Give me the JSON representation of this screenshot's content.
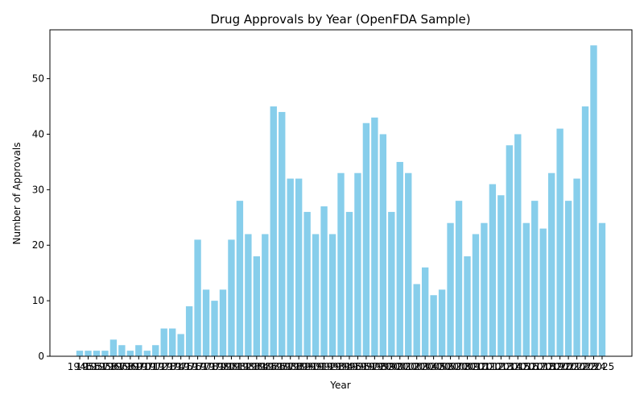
{
  "chart_data": {
    "type": "bar",
    "title": "Drug Approvals by Year (OpenFDA Sample)",
    "x_label": "Year",
    "y_label": "Number of Approvals",
    "categories": [
      "1946",
      "1955",
      "1957",
      "1958",
      "1967",
      "1968",
      "1969",
      "1970",
      "1971",
      "1972",
      "1973",
      "1974",
      "1975",
      "1976",
      "1977",
      "1978",
      "1979",
      "1980",
      "1981",
      "1982",
      "1983",
      "1984",
      "1985",
      "1986",
      "1987",
      "1988",
      "1989",
      "1990",
      "1991",
      "1992",
      "1993",
      "1994",
      "1995",
      "1996",
      "1997",
      "1998",
      "1999",
      "2000",
      "2001",
      "2002",
      "2003",
      "2004",
      "2005",
      "2006",
      "2007",
      "2008",
      "2009",
      "2010",
      "2011",
      "2012",
      "2013",
      "2014",
      "2015",
      "2016",
      "2017",
      "2018",
      "2019",
      "2020",
      "2021",
      "2022",
      "2023",
      "2024",
      "2025"
    ],
    "values": [
      1,
      1,
      1,
      1,
      3,
      2,
      1,
      2,
      1,
      2,
      5,
      5,
      4,
      9,
      21,
      12,
      10,
      12,
      21,
      28,
      22,
      18,
      22,
      45,
      44,
      32,
      32,
      26,
      22,
      27,
      22,
      33,
      26,
      33,
      42,
      43,
      40,
      26,
      35,
      33,
      13,
      16,
      11,
      12,
      24,
      28,
      18,
      22,
      24,
      31,
      29,
      38,
      40,
      24,
      28,
      23,
      33,
      41,
      28,
      32,
      45,
      56,
      24
    ],
    "color": "#87ceeb",
    "ylim": [
      0,
      58.8
    ],
    "yticks": [
      0,
      10,
      20,
      30,
      40,
      50
    ],
    "grid": false
  }
}
